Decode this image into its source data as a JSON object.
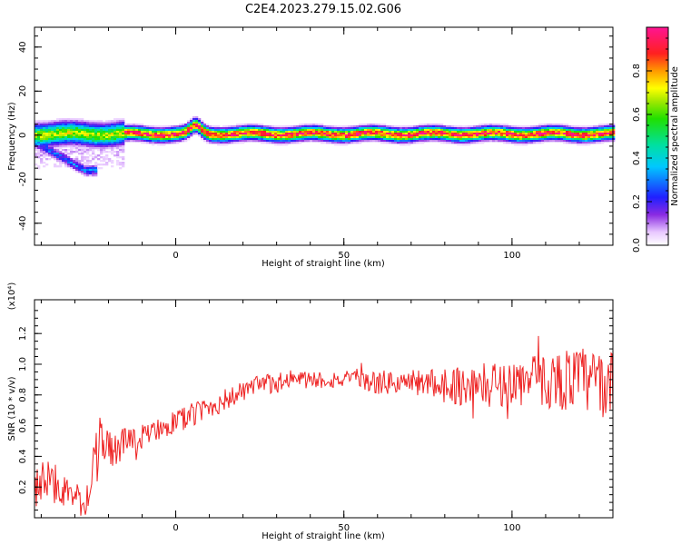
{
  "title": "C2E4.2023.279.15.02.G06",
  "colors": {
    "snr_line": "#ee2222",
    "background": "#ffffff",
    "axes": "#000000"
  },
  "chart_data": [
    {
      "type": "heatmap",
      "xlabel": "Height of straight line (km)",
      "ylabel": "Frequency (Hz)",
      "xlim": [
        -42,
        130
      ],
      "ylim": [
        -50,
        49
      ],
      "xticks": [
        "0",
        "50",
        "100"
      ],
      "yticks": [
        "40",
        "20",
        "0",
        "-20",
        "-40"
      ],
      "colorbar": {
        "label": "Normalized spectral amplitude",
        "range": [
          0.0,
          1.0
        ],
        "ticks": [
          "0.0",
          "0.2",
          "0.4",
          "0.6",
          "0.8"
        ],
        "colormap": "rainbow (white-violet-blue-cyan-green-yellow-orange-red-magenta)"
      },
      "features": {
        "main_band_center_hz": 0.5,
        "band_bump_near_km": 6,
        "band_bump_center_hz": 4,
        "secondary_streak_hz_range": [
          -3,
          -16
        ],
        "secondary_streak_km_range": [
          -42,
          -27
        ]
      }
    },
    {
      "type": "line",
      "xlabel": "Height of straight line (km)",
      "ylabel": "SNR (10 * v/v)",
      "scale_label": "(x10⁴)",
      "xlim": [
        -42,
        130
      ],
      "ylim": [
        0.0,
        1.42
      ],
      "xticks": [
        "0",
        "50",
        "100"
      ],
      "yticks": [
        "0.2",
        "0.4",
        "0.6",
        "0.8",
        "1.0",
        "1.2"
      ],
      "series": [
        {
          "x": [
            -42,
            -38,
            -34,
            -30,
            -26,
            -24,
            -22,
            -20,
            -16,
            -12,
            -8,
            -4,
            0,
            4,
            8,
            12,
            16,
            20,
            25,
            30,
            35,
            40,
            45,
            50,
            55,
            60,
            65,
            70,
            75,
            80,
            85,
            90,
            95,
            100,
            105,
            110,
            115,
            120,
            125,
            130
          ],
          "values": [
            0.22,
            0.24,
            0.2,
            0.1,
            0.12,
            0.35,
            0.55,
            0.42,
            0.48,
            0.5,
            0.55,
            0.6,
            0.62,
            0.66,
            0.7,
            0.74,
            0.78,
            0.82,
            0.86,
            0.88,
            0.9,
            0.9,
            0.9,
            0.9,
            0.89,
            0.88,
            0.88,
            0.88,
            0.88,
            0.87,
            0.86,
            0.86,
            0.87,
            0.88,
            0.89,
            0.89,
            0.9,
            0.9,
            0.88,
            0.86
          ],
          "noise": [
            0.15,
            0.15,
            0.12,
            0.08,
            0.12,
            0.2,
            0.2,
            0.15,
            0.1,
            0.08,
            0.08,
            0.08,
            0.08,
            0.08,
            0.08,
            0.08,
            0.07,
            0.07,
            0.07,
            0.07,
            0.06,
            0.06,
            0.06,
            0.06,
            0.06,
            0.08,
            0.08,
            0.09,
            0.09,
            0.12,
            0.13,
            0.14,
            0.15,
            0.15,
            0.17,
            0.18,
            0.2,
            0.22,
            0.22,
            0.22
          ]
        }
      ]
    }
  ]
}
